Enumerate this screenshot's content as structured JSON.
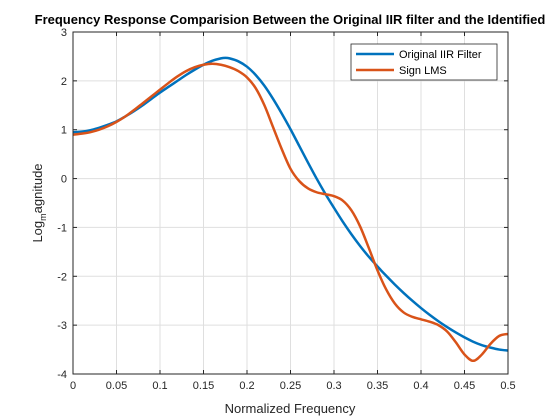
{
  "chart_data": {
    "type": "line",
    "title": "Frequency Response Comparision Between the Original IIR filter and the Identified",
    "xlabel": "Normalized Frequency",
    "ylabel_main": "Log",
    "ylabel_sub": "m",
    "ylabel_rest": "agnitude",
    "xlim": [
      0,
      0.5
    ],
    "ylim": [
      -4,
      3
    ],
    "xticks": [
      0,
      0.05,
      0.1,
      0.15,
      0.2,
      0.25,
      0.3,
      0.35,
      0.4,
      0.45,
      0.5
    ],
    "xtick_labels": [
      "0",
      "0.05",
      "0.1",
      "0.15",
      "0.2",
      "0.25",
      "0.3",
      "0.35",
      "0.4",
      "0.45",
      "0.5"
    ],
    "yticks": [
      -4,
      -3,
      -2,
      -1,
      0,
      1,
      2,
      3
    ],
    "ytick_labels": [
      "-4",
      "-3",
      "-2",
      "-1",
      "0",
      "1",
      "2",
      "3"
    ],
    "grid": true,
    "legend_position": "top-right",
    "series": [
      {
        "name": "Original IIR Filter",
        "color": "#0072BD",
        "x": [
          0,
          0.01,
          0.02,
          0.03,
          0.04,
          0.05,
          0.06,
          0.07,
          0.08,
          0.09,
          0.1,
          0.11,
          0.12,
          0.13,
          0.14,
          0.15,
          0.16,
          0.17,
          0.175,
          0.18,
          0.19,
          0.2,
          0.21,
          0.22,
          0.23,
          0.24,
          0.25,
          0.26,
          0.27,
          0.28,
          0.29,
          0.3,
          0.31,
          0.32,
          0.33,
          0.34,
          0.35,
          0.36,
          0.37,
          0.38,
          0.39,
          0.4,
          0.41,
          0.42,
          0.43,
          0.44,
          0.45,
          0.46,
          0.47,
          0.48,
          0.49,
          0.5
        ],
        "y": [
          0.95,
          0.96,
          0.99,
          1.04,
          1.1,
          1.17,
          1.27,
          1.38,
          1.5,
          1.63,
          1.76,
          1.88,
          2.0,
          2.12,
          2.23,
          2.33,
          2.41,
          2.46,
          2.47,
          2.46,
          2.4,
          2.29,
          2.12,
          1.9,
          1.63,
          1.33,
          1.01,
          0.67,
          0.33,
          0.0,
          -0.31,
          -0.6,
          -0.88,
          -1.14,
          -1.38,
          -1.6,
          -1.8,
          -1.99,
          -2.17,
          -2.34,
          -2.5,
          -2.65,
          -2.79,
          -2.92,
          -3.04,
          -3.15,
          -3.25,
          -3.34,
          -3.41,
          -3.46,
          -3.5,
          -3.52
        ]
      },
      {
        "name": "Sign LMS",
        "color": "#D95319",
        "x": [
          0,
          0.01,
          0.02,
          0.03,
          0.04,
          0.05,
          0.06,
          0.07,
          0.08,
          0.09,
          0.1,
          0.11,
          0.12,
          0.13,
          0.14,
          0.15,
          0.16,
          0.17,
          0.18,
          0.19,
          0.2,
          0.21,
          0.22,
          0.23,
          0.24,
          0.25,
          0.26,
          0.27,
          0.28,
          0.29,
          0.3,
          0.31,
          0.32,
          0.33,
          0.34,
          0.35,
          0.36,
          0.37,
          0.38,
          0.39,
          0.4,
          0.41,
          0.42,
          0.43,
          0.44,
          0.45,
          0.46,
          0.47,
          0.48,
          0.49,
          0.5
        ],
        "y": [
          0.9,
          0.92,
          0.95,
          1.0,
          1.07,
          1.16,
          1.27,
          1.4,
          1.54,
          1.68,
          1.82,
          1.96,
          2.09,
          2.2,
          2.28,
          2.33,
          2.35,
          2.33,
          2.28,
          2.2,
          2.07,
          1.85,
          1.5,
          1.05,
          0.6,
          0.2,
          -0.05,
          -0.2,
          -0.28,
          -0.32,
          -0.36,
          -0.45,
          -0.65,
          -0.98,
          -1.42,
          -1.88,
          -2.27,
          -2.56,
          -2.74,
          -2.83,
          -2.88,
          -2.93,
          -3.0,
          -3.13,
          -3.35,
          -3.6,
          -3.73,
          -3.6,
          -3.38,
          -3.22,
          -3.18
        ]
      }
    ]
  }
}
